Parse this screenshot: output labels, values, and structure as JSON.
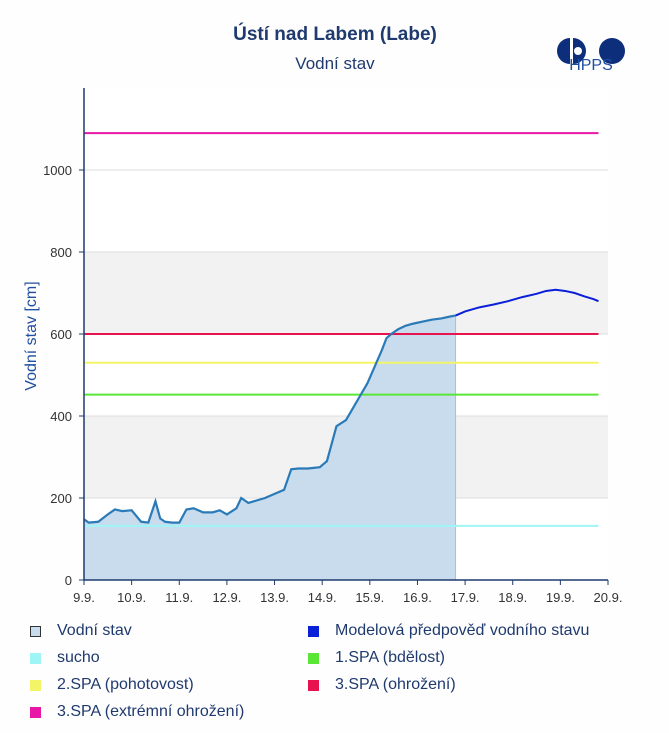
{
  "header": {
    "title": "Ústí nad Labem (Labe)",
    "subtitle": "Vodní stav",
    "logo_text": "HPPS",
    "logo_icon": "hpps-logo-icon"
  },
  "chart_data": {
    "type": "line",
    "ylabel": "Vodní stav [cm]",
    "xlabel": "",
    "ylim": [
      0,
      1200
    ],
    "yticks": [
      0,
      200,
      400,
      600,
      800,
      1000
    ],
    "xlim": [
      9.0,
      20.0
    ],
    "xticks": [
      {
        "v": 9,
        "label": "9.9."
      },
      {
        "v": 10,
        "label": "10.9."
      },
      {
        "v": 11,
        "label": "11.9."
      },
      {
        "v": 12,
        "label": "12.9."
      },
      {
        "v": 13,
        "label": "13.9."
      },
      {
        "v": 14,
        "label": "14.9."
      },
      {
        "v": 15,
        "label": "15.9."
      },
      {
        "v": 16,
        "label": "16.9."
      },
      {
        "v": 17,
        "label": "17.9."
      },
      {
        "v": 18,
        "label": "18.9."
      },
      {
        "v": 19,
        "label": "19.9."
      },
      {
        "v": 20,
        "label": "20.9."
      }
    ],
    "bands": [
      [
        200,
        400
      ],
      [
        600,
        800
      ]
    ],
    "series": [
      {
        "name": "Vodní stav",
        "color": "#2a7ab8",
        "fill": "#c8dcee",
        "x": [
          9.0,
          9.1,
          9.3,
          9.5,
          9.65,
          9.8,
          10.0,
          10.2,
          10.35,
          10.5,
          10.6,
          10.7,
          10.85,
          11.0,
          11.15,
          11.3,
          11.5,
          11.7,
          11.85,
          12.0,
          12.2,
          12.3,
          12.45,
          12.8,
          13.0,
          13.2,
          13.35,
          13.5,
          13.7,
          13.95,
          14.1,
          14.3,
          14.5,
          14.65,
          14.8,
          14.95,
          15.1,
          15.25,
          15.35,
          15.45,
          15.6,
          15.75,
          15.9,
          16.1,
          16.3,
          16.5,
          16.7,
          16.8
        ],
        "y": [
          148,
          140,
          142,
          160,
          172,
          168,
          170,
          142,
          140,
          192,
          150,
          142,
          140,
          140,
          172,
          175,
          165,
          165,
          170,
          160,
          175,
          200,
          188,
          200,
          210,
          220,
          270,
          272,
          272,
          275,
          290,
          375,
          390,
          420,
          450,
          480,
          520,
          560,
          590,
          600,
          612,
          620,
          625,
          630,
          635,
          638,
          643,
          645
        ]
      },
      {
        "name": "Modelová předpověď vodního stavu",
        "color": "#0a1fd8",
        "x": [
          16.8,
          17.0,
          17.3,
          17.6,
          17.9,
          18.2,
          18.5,
          18.7,
          18.9,
          19.1,
          19.3,
          19.5,
          19.7,
          19.8
        ],
        "y": [
          645,
          655,
          665,
          672,
          680,
          690,
          698,
          705,
          708,
          705,
          700,
          692,
          685,
          680
        ]
      }
    ],
    "thresholds": [
      {
        "name": "sucho",
        "value": 132,
        "color": "#9ff5f5"
      },
      {
        "name": "1.SPA (bdělost)",
        "value": 452,
        "color": "#59e635"
      },
      {
        "name": "2.SPA (pohotovost)",
        "value": 530,
        "color": "#f3f567"
      },
      {
        "name": "3.SPA (ohrožení)",
        "value": 600,
        "color": "#e8124e"
      },
      {
        "name": "3.SPA (extrémní ohrožení)",
        "value": 1090,
        "color": "#e817a8"
      }
    ]
  },
  "legend": {
    "items": [
      {
        "label": "Vodní stav",
        "color": "#c8dcee",
        "border": "#333333",
        "col": 0,
        "row": 0
      },
      {
        "label": "Modelová předpověď vodního stavu",
        "color": "#0a1fd8",
        "border": "",
        "col": 1,
        "row": 0
      },
      {
        "label": "sucho",
        "color": "#9ff5f5",
        "border": "",
        "col": 0,
        "row": 1
      },
      {
        "label": "1.SPA (bdělost)",
        "color": "#59e635",
        "border": "",
        "col": 1,
        "row": 1
      },
      {
        "label": "2.SPA (pohotovost)",
        "color": "#f3f567",
        "border": "",
        "col": 0,
        "row": 2
      },
      {
        "label": "3.SPA (ohrožení)",
        "color": "#e8124e",
        "border": "",
        "col": 1,
        "row": 2
      },
      {
        "label": "3.SPA (extrémní ohrožení)",
        "color": "#e817a8",
        "border": "",
        "col": 0,
        "row": 3
      }
    ]
  }
}
